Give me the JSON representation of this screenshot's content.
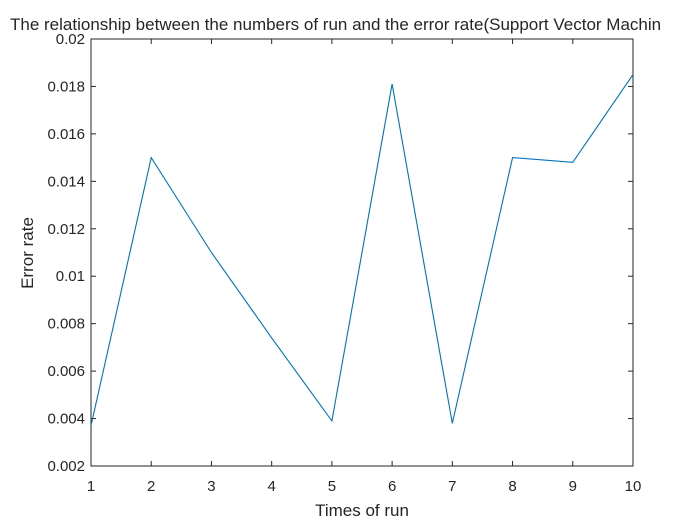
{
  "chart_data": {
    "type": "line",
    "title": "The relationship between the numbers of run and the error rate(Support Vector Machin",
    "xlabel": "Times of run",
    "ylabel": "Error rate",
    "xlim": [
      1,
      10
    ],
    "ylim": [
      0.002,
      0.02
    ],
    "xticks": [
      "1",
      "2",
      "3",
      "4",
      "5",
      "6",
      "7",
      "8",
      "9",
      "10"
    ],
    "yticks": [
      "0.002",
      "0.004",
      "0.006",
      "0.008",
      "0.01",
      "0.012",
      "0.014",
      "0.016",
      "0.018",
      "0.02"
    ],
    "grid": false,
    "series": [
      {
        "color": "#0072BD",
        "x": [
          1,
          2,
          3,
          4,
          5,
          6,
          7,
          8,
          9,
          10
        ],
        "y": [
          0.0037,
          0.015,
          0.011,
          0.0074,
          0.0039,
          0.0181,
          0.0038,
          0.015,
          0.0148,
          0.0185
        ]
      }
    ]
  }
}
